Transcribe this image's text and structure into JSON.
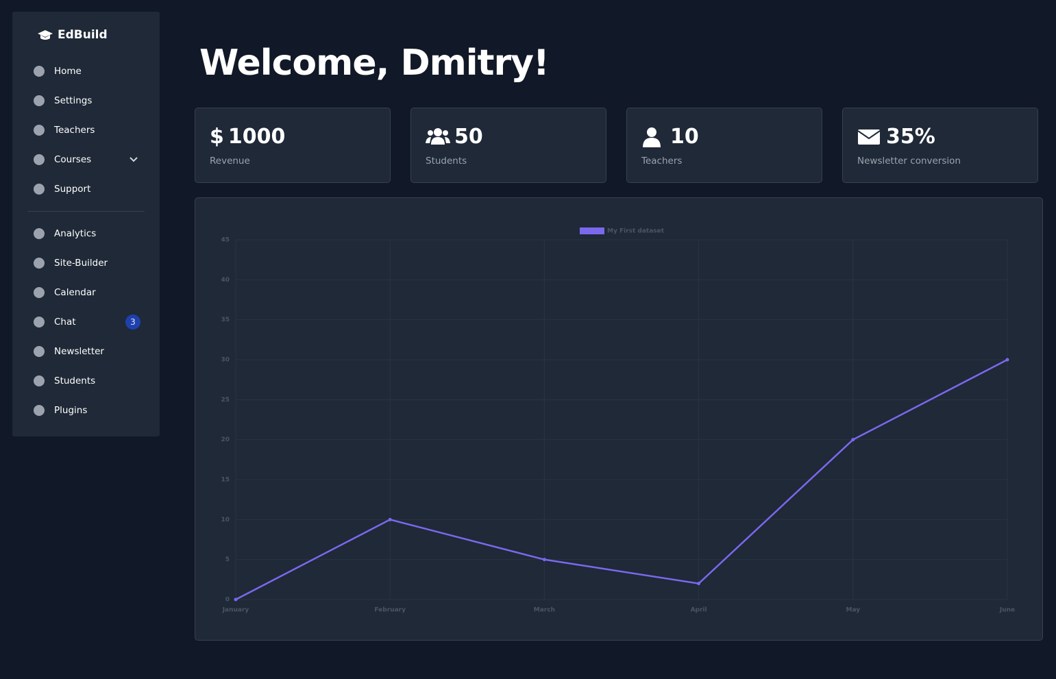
{
  "sidebar": {
    "brand": "EdBuild",
    "items": [
      "Home",
      "Settings",
      "Teachers",
      "Courses",
      "Support"
    ],
    "items2": [
      "Analytics",
      "Site-Builder",
      "Calendar",
      "Chat",
      "Newsletter",
      "Students",
      "Plugins"
    ],
    "chat_badge": "3"
  },
  "header": {
    "title": "Welcome, Dmitry!"
  },
  "stats": [
    {
      "icon": "$",
      "value": "1000",
      "label": "Revenue"
    },
    {
      "value": "50",
      "label": "Students"
    },
    {
      "value": "10",
      "label": "Teachers"
    },
    {
      "value": "35%",
      "label": "Newsletter conversion"
    }
  ],
  "chart_data": {
    "type": "line",
    "categories": [
      "January",
      "February",
      "March",
      "April",
      "May",
      "June"
    ],
    "series": [
      {
        "name": "My First dataset",
        "color": "#7b68ee",
        "values": [
          0,
          10,
          5,
          2,
          20,
          30
        ]
      }
    ],
    "ylim": [
      0,
      45
    ],
    "yticks": [
      0,
      5,
      10,
      15,
      20,
      25,
      30,
      35,
      40,
      45
    ],
    "grid": true,
    "legend": "top"
  }
}
